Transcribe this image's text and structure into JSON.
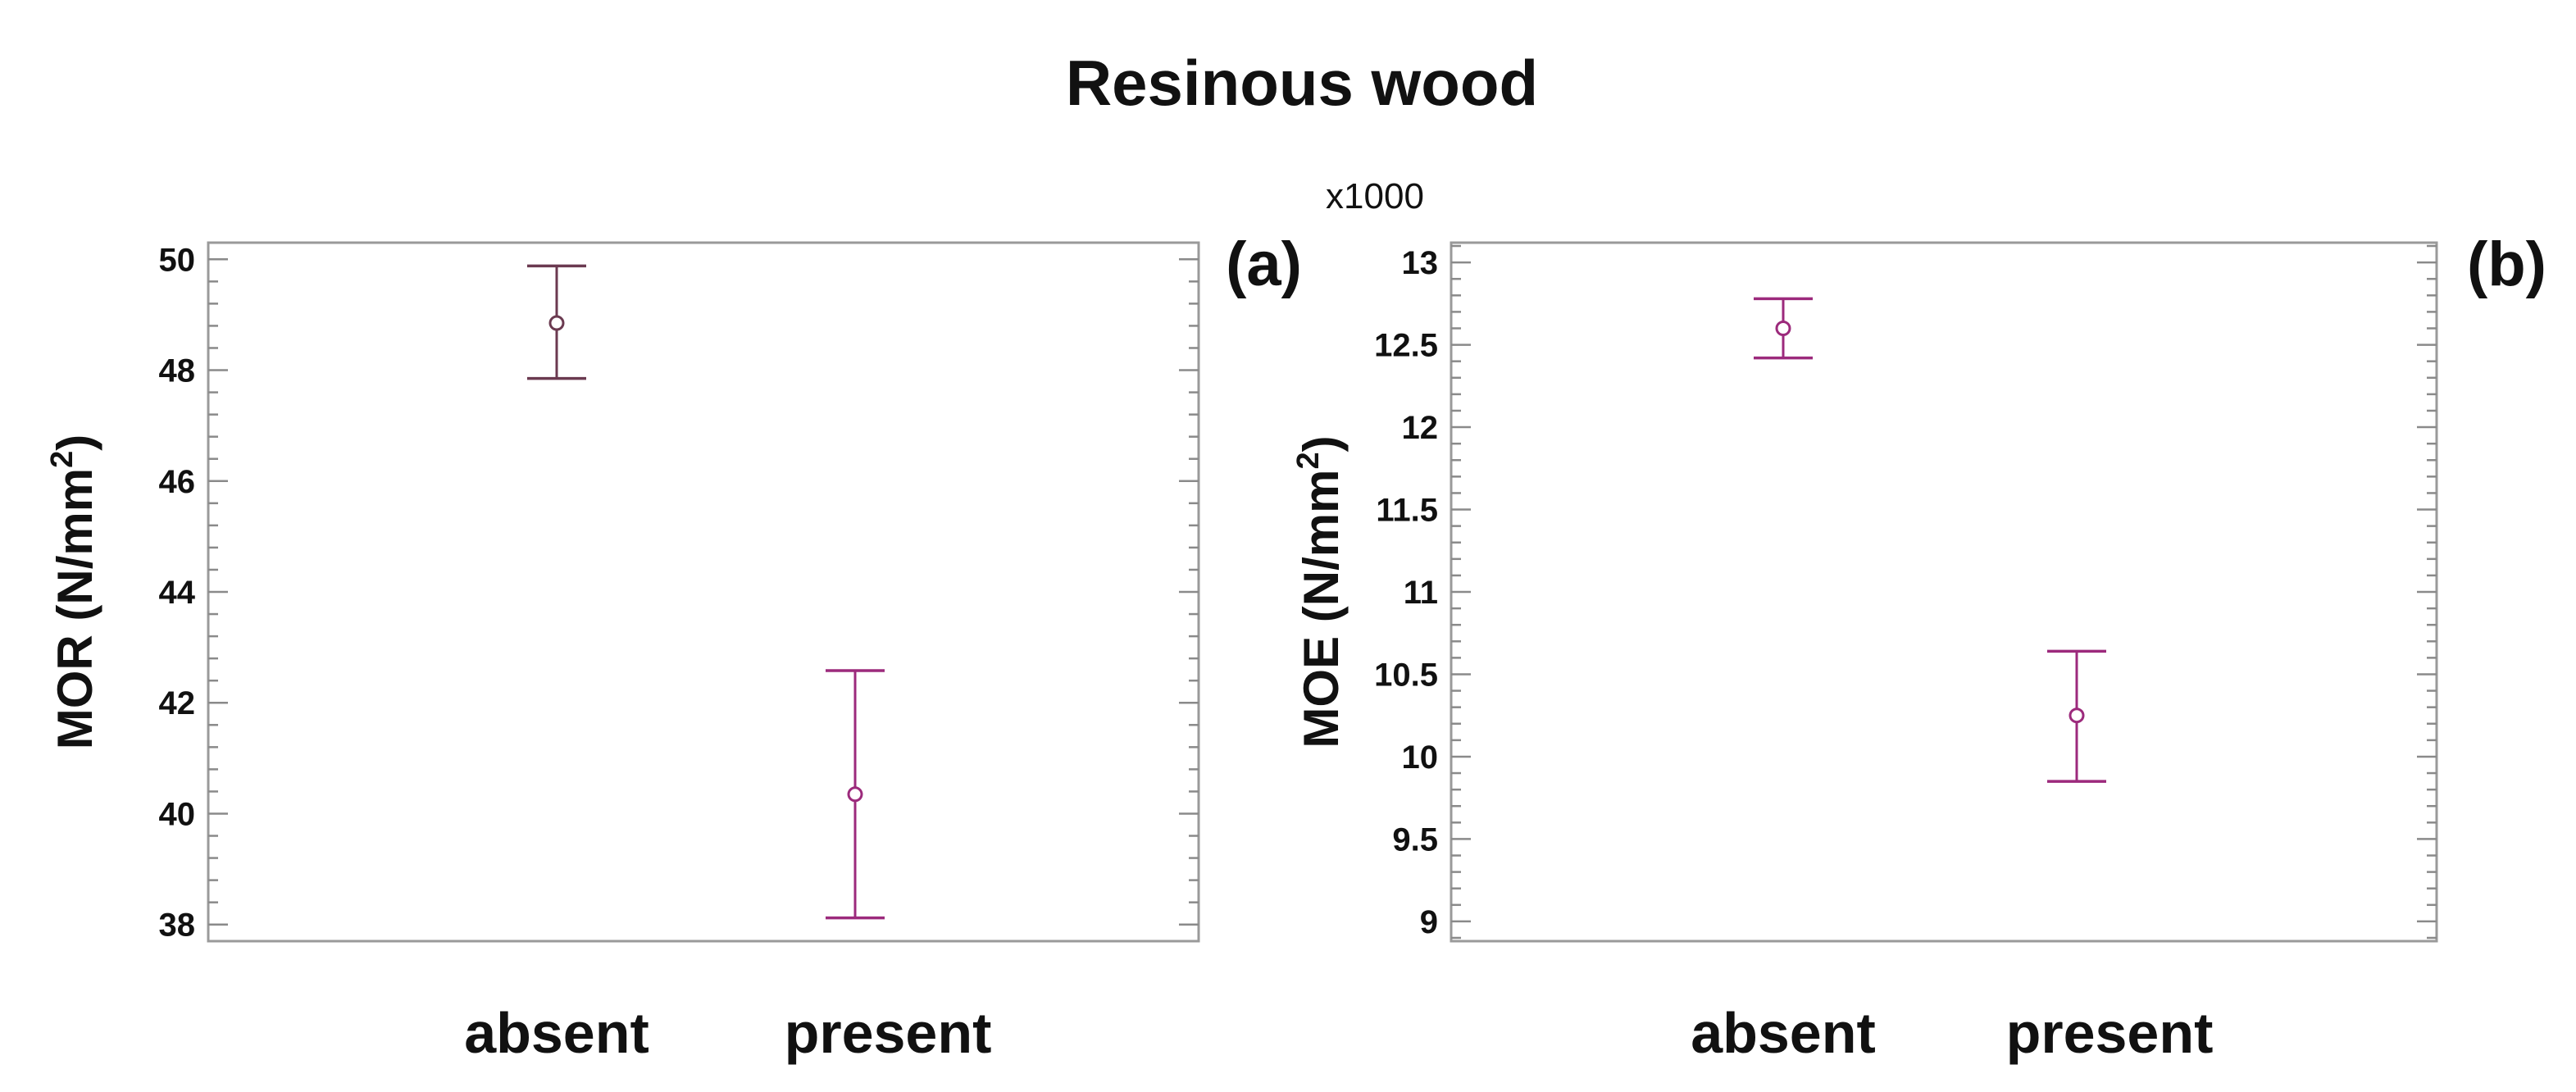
{
  "figure": {
    "title": "Resinous wood"
  },
  "chart_data": [
    {
      "type": "scatter",
      "panel_label": "(a)",
      "categories": [
        "absent",
        "present"
      ],
      "ylabel": {
        "main": "MOR (N/mm",
        "sup": "2",
        "close": ")"
      },
      "yticks": [
        "38",
        "40",
        "42",
        "44",
        "46",
        "48",
        "50"
      ],
      "ylim": [
        37.7,
        50.3
      ],
      "ytick_values": [
        38,
        40,
        42,
        44,
        46,
        48,
        50
      ],
      "minor_step": 0.4,
      "multiplier": "",
      "points": [
        {
          "category": "absent",
          "mean": 48.85,
          "lower": 47.85,
          "upper": 49.88,
          "color": "#6b3a50"
        },
        {
          "category": "present",
          "mean": 40.35,
          "lower": 38.12,
          "upper": 42.58,
          "color": "#9c2a7c"
        }
      ],
      "grid": false,
      "legend": "none"
    },
    {
      "type": "scatter",
      "panel_label": "(b)",
      "categories": [
        "absent",
        "present"
      ],
      "ylabel": {
        "main": "MOE (N/mm",
        "sup": "2",
        "close": ")"
      },
      "yticks": [
        "9",
        "9.5",
        "10",
        "10.5",
        "11",
        "11.5",
        "12",
        "12.5",
        "13"
      ],
      "ylim": [
        8.88,
        13.12
      ],
      "ytick_values": [
        9,
        9.5,
        10,
        10.5,
        11,
        11.5,
        12,
        12.5,
        13
      ],
      "minor_step": 0.1,
      "multiplier": "x1000",
      "points": [
        {
          "category": "absent",
          "mean": 12.6,
          "lower": 12.42,
          "upper": 12.78,
          "color": "#9c2a7c"
        },
        {
          "category": "present",
          "mean": 10.25,
          "lower": 9.85,
          "upper": 10.64,
          "color": "#9c2a7c"
        }
      ],
      "grid": false,
      "legend": "none"
    }
  ]
}
